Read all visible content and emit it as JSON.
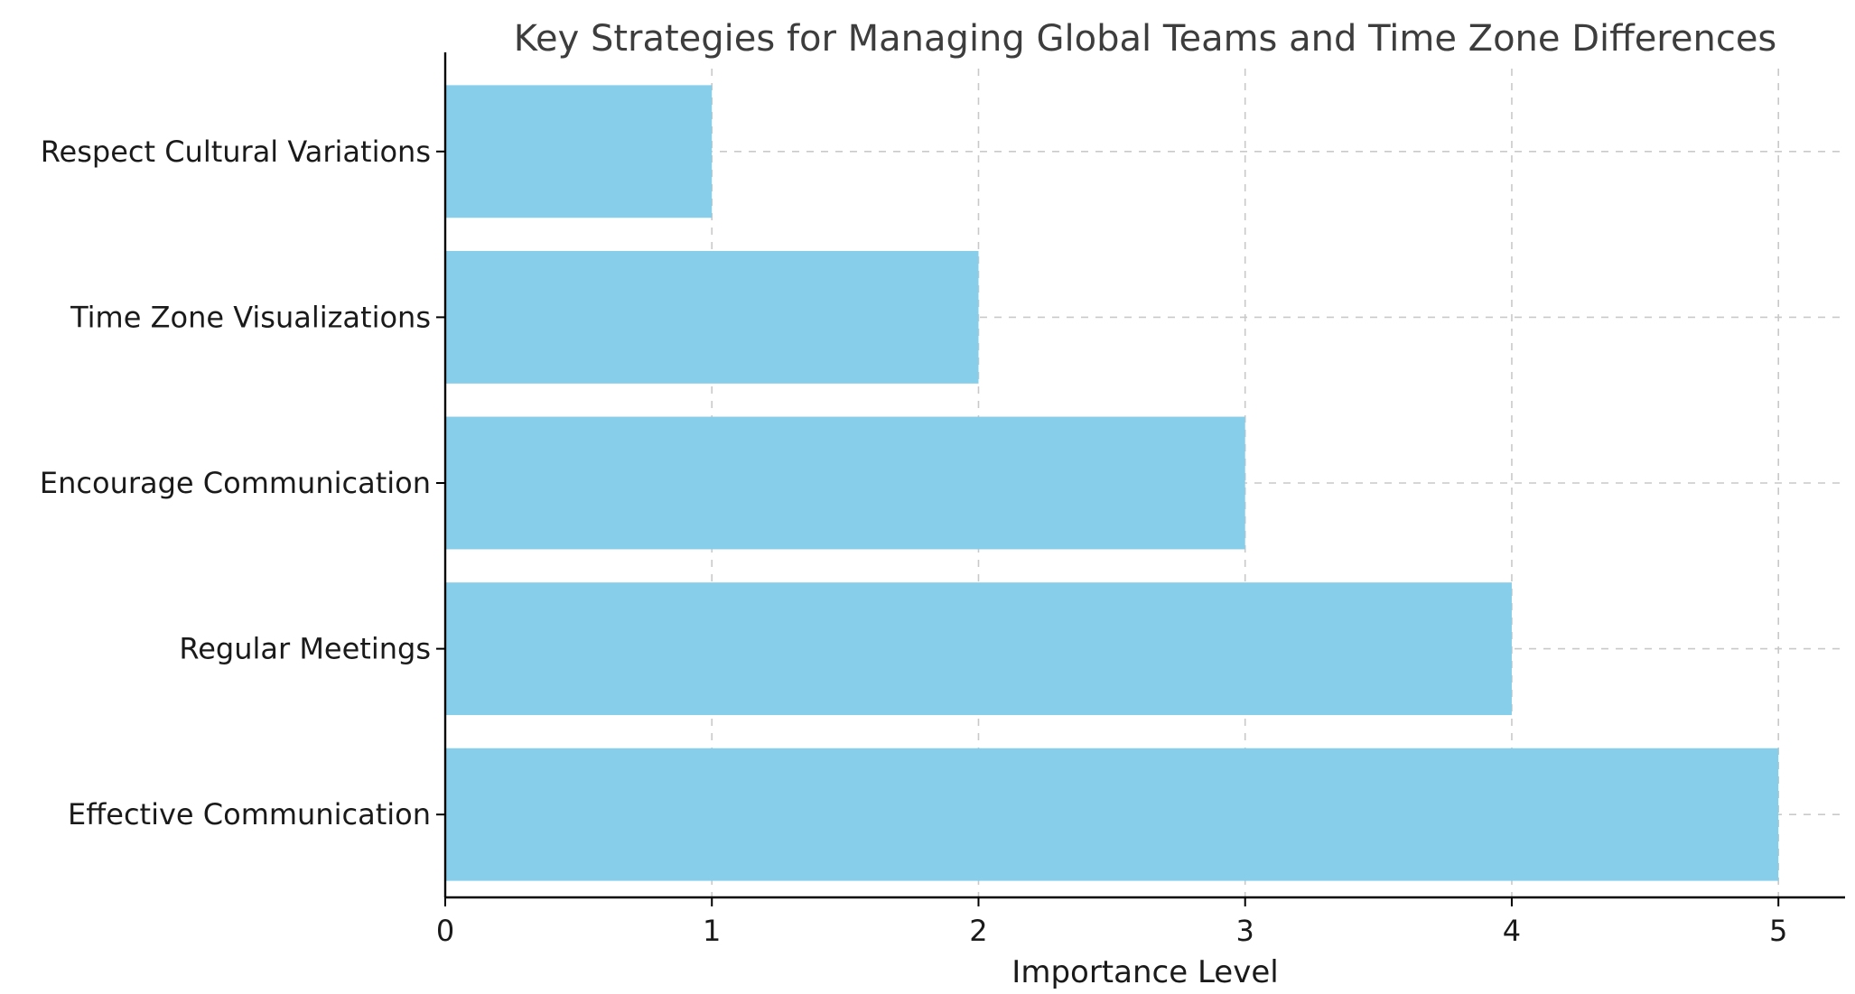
{
  "chart_data": {
    "type": "bar",
    "orientation": "horizontal",
    "title": "Key Strategies for Managing Global Teams and Time Zone Differences",
    "xlabel": "Importance Level",
    "ylabel": "",
    "categories": [
      "Respect Cultural Variations",
      "Time Zone Visualizations",
      "Encourage Communication",
      "Regular Meetings",
      "Effective Communication"
    ],
    "values": [
      1,
      2,
      3,
      4,
      5
    ],
    "xticks": [
      "0",
      "1",
      "2",
      "3",
      "4",
      "5"
    ],
    "xlim": [
      0,
      5.25
    ],
    "bar_color": "#87CEEB",
    "grid": true,
    "grid_style": "dashed",
    "grid_color": "#c9c9c9",
    "spine_color": "#000000",
    "title_color": "#3d3d3d",
    "text_color": "#1a1a1a",
    "legend": "none"
  }
}
